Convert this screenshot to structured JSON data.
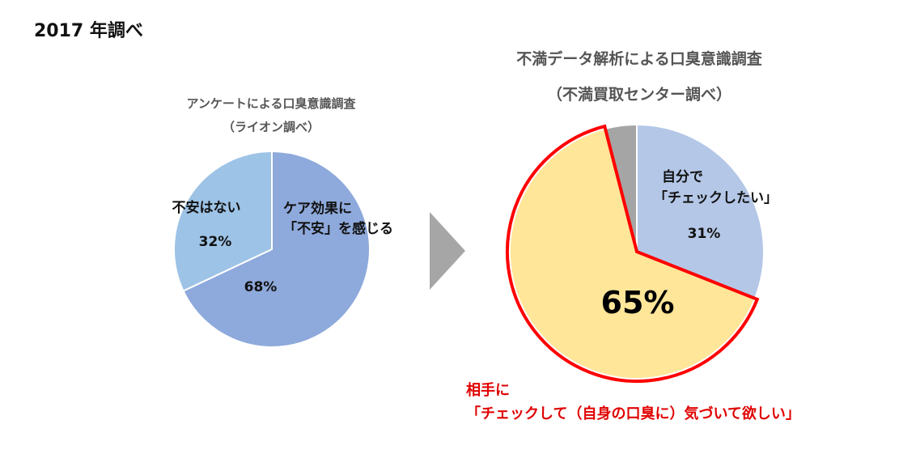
{
  "page": {
    "title": "2017 年調べ"
  },
  "colors": {
    "left_large": "#8ea9db",
    "left_small": "#9dc3e6",
    "right_yellow": "#ffe699",
    "right_blue": "#b4c7e7",
    "right_gray": "#a5a5a5",
    "highlight_red": "#ff0000",
    "arrow_gray": "#a6a6a6",
    "footnote_red": "#e00000"
  },
  "chart_data": [
    {
      "type": "pie",
      "title": "アンケートによる口臭意識調査",
      "subtitle": "（ライオン調べ）",
      "start_angle_deg": 0,
      "slices": [
        {
          "label": [
            "ケア効果に",
            "「不安」を感じる"
          ],
          "value": 68,
          "value_label": "68%"
        },
        {
          "label": [
            "不安はない"
          ],
          "value": 32,
          "value_label": "32%"
        }
      ]
    },
    {
      "type": "pie",
      "title": "不満データ解析による口臭意識調査",
      "subtitle": "（不満買取センター調べ）",
      "start_angle_deg": 0,
      "slices": [
        {
          "label": [
            "自分で",
            "「チェックしたい」"
          ],
          "value": 31,
          "value_label": "31%"
        },
        {
          "label": [],
          "value": 65,
          "value_label": "65%"
        },
        {
          "label": [],
          "value": 4,
          "value_label": ""
        }
      ]
    }
  ],
  "footnote": {
    "line1": "相手に",
    "line2": "「チェックして（自身の口臭に）気づいて欲しい」"
  }
}
